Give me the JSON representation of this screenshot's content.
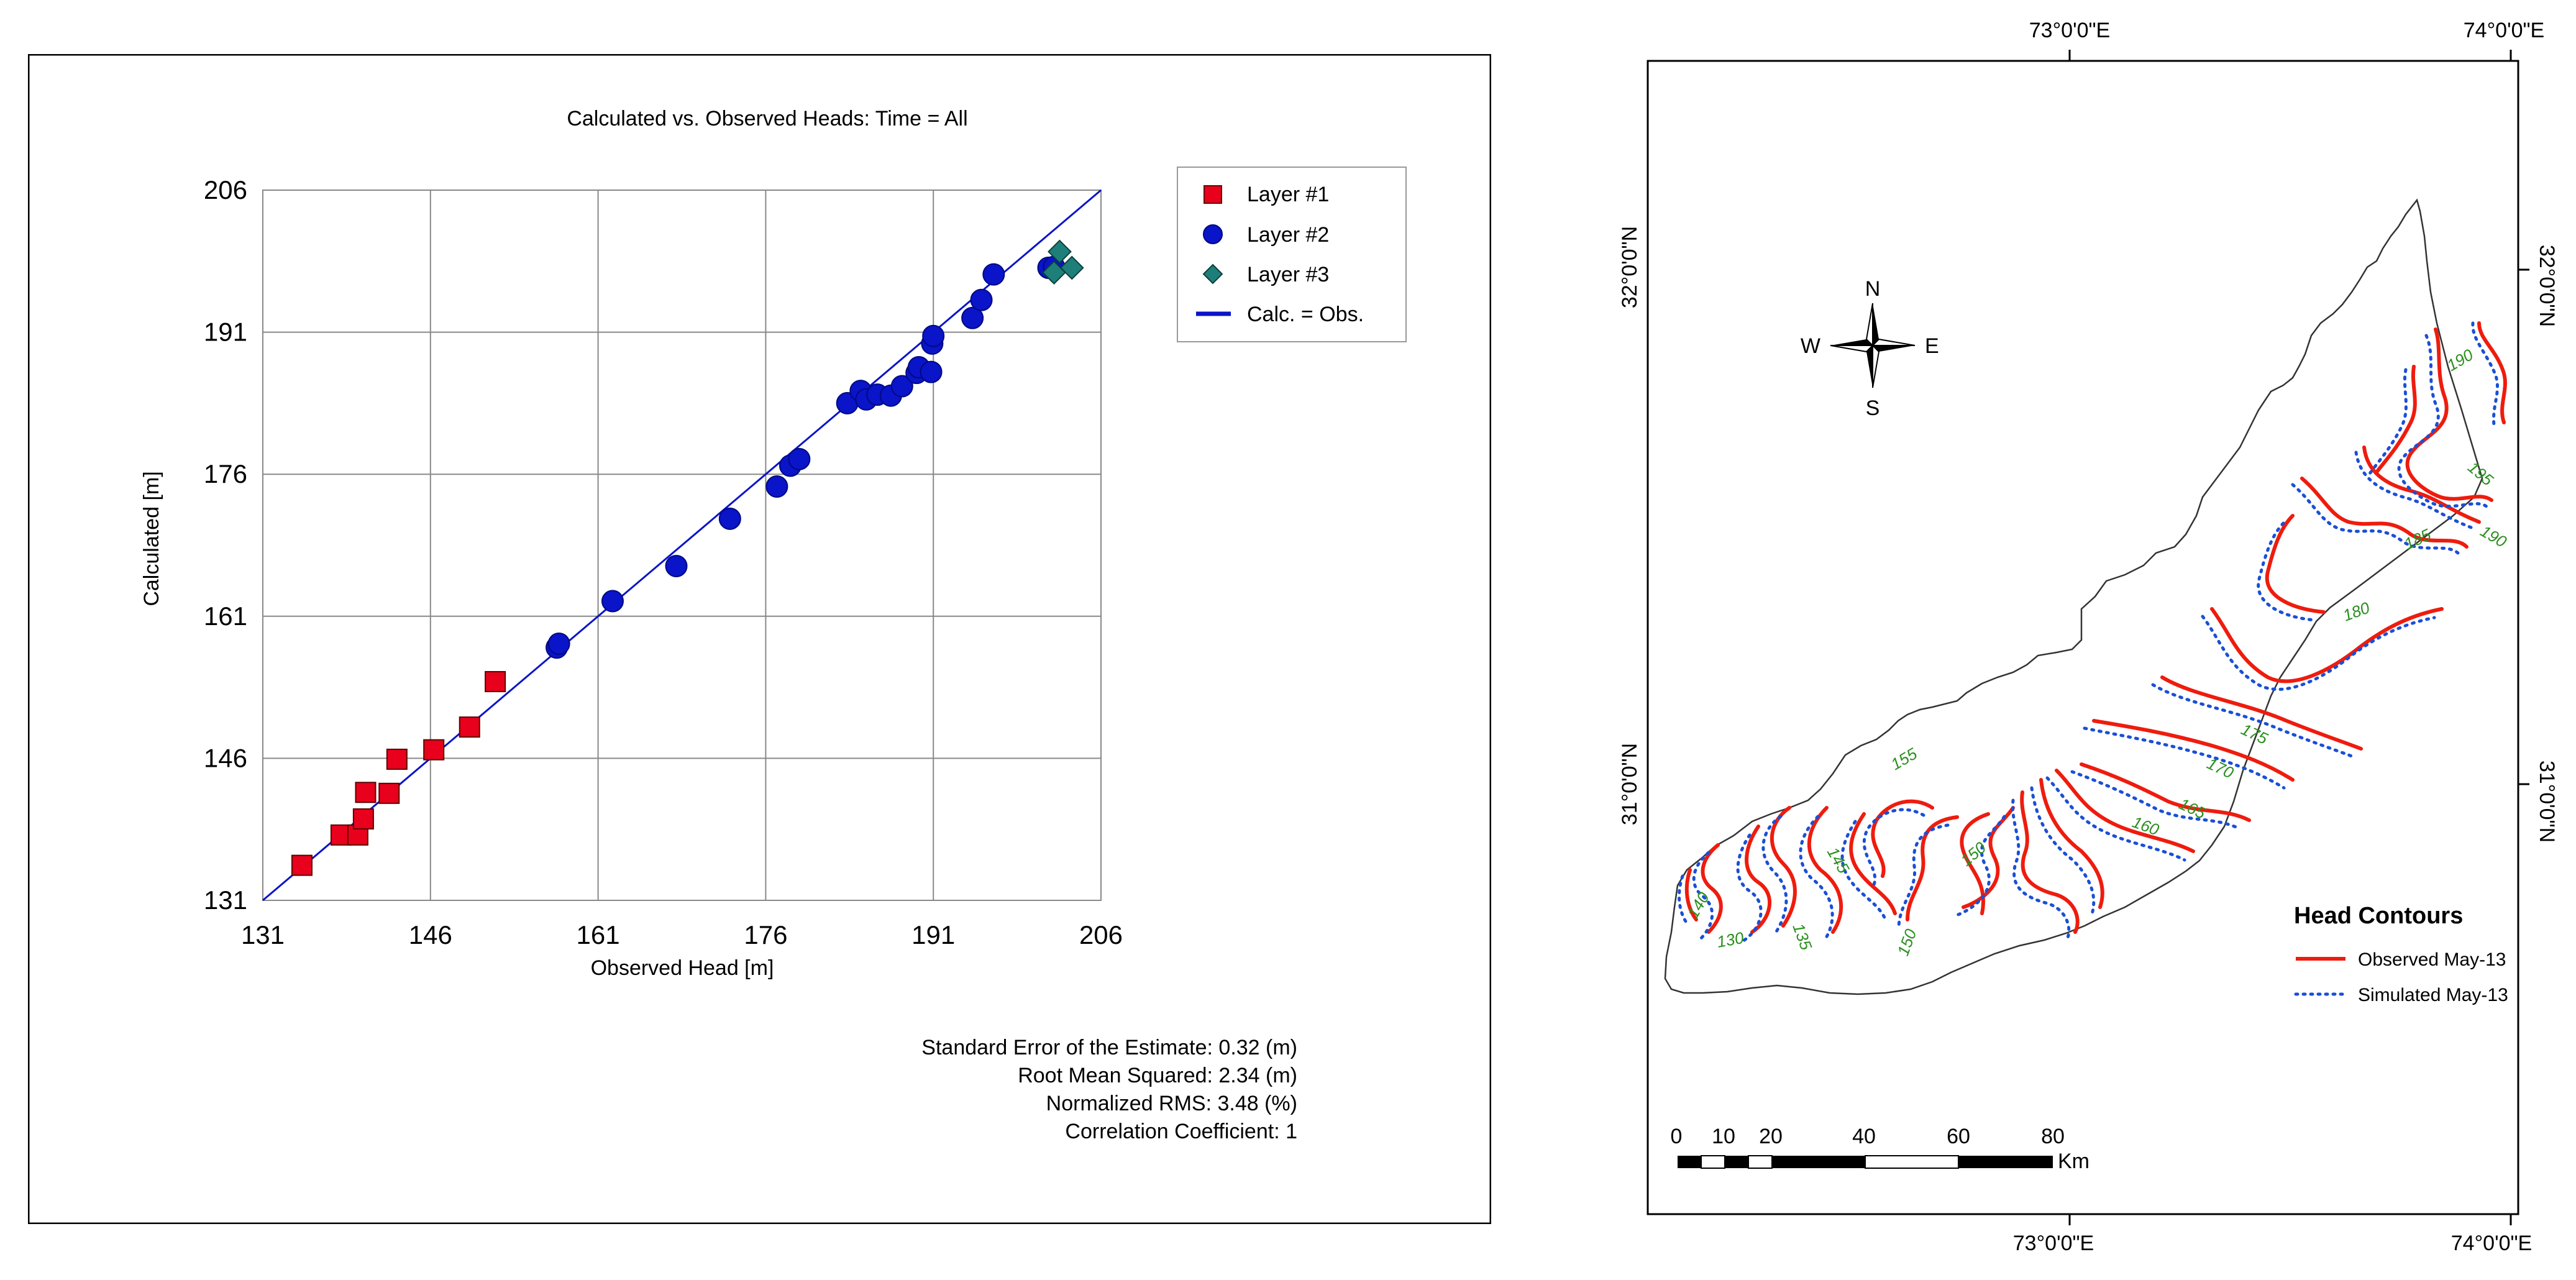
{
  "chart_data": {
    "type": "scatter",
    "title": "Calculated vs. Observed Heads: Time = All",
    "xlabel": "Observed Head [m]",
    "ylabel": "Calculated [m]",
    "xlim": [
      131,
      206
    ],
    "ylim": [
      131,
      206
    ],
    "ticks": [
      131,
      146,
      161,
      176,
      191,
      206
    ],
    "grid": true,
    "legend_position": "top-right",
    "series": [
      {
        "name": "Layer #1",
        "marker": "square",
        "color": "#e8001c",
        "points": [
          [
            134.5,
            134.7
          ],
          [
            138,
            137.9
          ],
          [
            139.5,
            137.9
          ],
          [
            140,
            139.6
          ],
          [
            140.2,
            142.4
          ],
          [
            142.3,
            142.3
          ],
          [
            143,
            145.9
          ],
          [
            146.3,
            146.9
          ],
          [
            149.5,
            149.3
          ],
          [
            151.8,
            154.1
          ]
        ]
      },
      {
        "name": "Layer #2",
        "marker": "circle",
        "color": "#0a14c8",
        "points": [
          [
            157.3,
            157.7
          ],
          [
            157.5,
            158.1
          ],
          [
            162.3,
            162.6
          ],
          [
            168,
            166.3
          ],
          [
            172.8,
            171.3
          ],
          [
            177,
            174.7
          ],
          [
            178.2,
            176.9
          ],
          [
            179,
            177.6
          ],
          [
            183.3,
            183.5
          ],
          [
            184.5,
            184.8
          ],
          [
            185,
            183.9
          ],
          [
            186,
            184.4
          ],
          [
            187.2,
            184.3
          ],
          [
            188.2,
            185.3
          ],
          [
            189.5,
            186.7
          ],
          [
            189.7,
            187.3
          ],
          [
            190.8,
            186.8
          ],
          [
            190.9,
            189.8
          ],
          [
            191,
            190.6
          ],
          [
            194.5,
            192.5
          ],
          [
            195.3,
            194.4
          ],
          [
            196.4,
            197.1
          ],
          [
            201.3,
            197.8
          ],
          [
            201.8,
            197.9
          ]
        ]
      },
      {
        "name": "Layer #3",
        "marker": "diamond",
        "color": "#1e7f7a",
        "points": [
          [
            201.8,
            197.3
          ],
          [
            202.3,
            199.5
          ],
          [
            203.4,
            197.8
          ]
        ]
      }
    ],
    "line": {
      "name": "Calc. = Obs.",
      "color": "#0a14c8"
    },
    "stats": [
      "Standard Error of the Estimate: 0.32 (m)",
      "Root Mean Squared: 2.34 (m)",
      "Normalized RMS: 3.48 (%)",
      "Correlation Coefficient: 1"
    ]
  },
  "map": {
    "top_lon_labels": [
      "73°0'0\"E",
      "74°0'0\"E"
    ],
    "bottom_lon_labels": [
      "73°0'0\"E",
      "74°0'0\"E"
    ],
    "left_lat_labels": [
      "32°0'0\"N",
      "31°0'0\"N"
    ],
    "right_lat_labels": [
      "32°0'0\"N",
      "31°0'0\"N"
    ],
    "compass": {
      "n": "N",
      "s": "S",
      "e": "E",
      "w": "W"
    },
    "scale_labels": [
      "0",
      "10",
      "20",
      "40",
      "60",
      "80"
    ],
    "scale_unit": "Km",
    "legend_title": "Head Contours",
    "legend_observed": "Observed May-13",
    "legend_simulated": "Simulated May-13",
    "observed_color": "#ee1c0e",
    "simulated_color": "#1a4fd6",
    "label_color": "#2a8f1e",
    "contour_labels": [
      "190",
      "195",
      "190",
      "185",
      "180",
      "175",
      "170",
      "165",
      "160",
      "155",
      "150",
      "145",
      "140",
      "135",
      "130",
      "150"
    ]
  }
}
